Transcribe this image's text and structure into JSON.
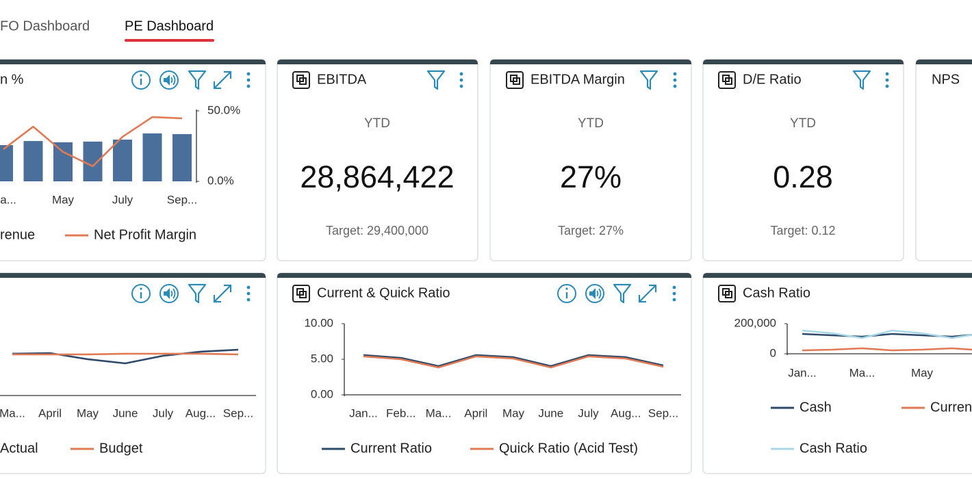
{
  "tabs": [
    "FO Dashboard",
    "PE Dashboard"
  ],
  "cards": [
    {
      "title": "n %",
      "chart_data": {
        "type": "bar_line",
        "categories": [
          "Ma...",
          null,
          "May",
          null,
          "July",
          null,
          "Sep..."
        ],
        "series": [
          {
            "name": "renue",
            "kind": "bar",
            "color": "#4a6f9a",
            "values": [
              25.7,
              28.6,
              27.7,
              28.2,
              29.6,
              34.0,
              33.5
            ]
          },
          {
            "name": "Net Profit Margin",
            "kind": "line",
            "color": "#e07a54",
            "values": [
              22.8,
              38.8,
              20.9,
              10.7,
              31.6,
              45.6,
              44.7
            ]
          }
        ],
        "ylim": [
          0,
          50
        ],
        "yticks": [
          {
            "value": 50,
            "label": "50.0%"
          },
          {
            "value": 0,
            "label": "0.0%"
          }
        ]
      }
    },
    {
      "title": "EBITDA",
      "period": "YTD",
      "value": "28,864,422",
      "target": "Target: 29,400,000"
    },
    {
      "title": "EBITDA Margin",
      "period": "YTD",
      "value": "27%",
      "target": "Target: 27%"
    },
    {
      "title": "D/E Ratio",
      "period": "YTD",
      "value": "0.28",
      "target": "Target: 0.12"
    },
    {
      "title": "NPS"
    },
    {
      "chart_data": {
        "type": "line",
        "categories": [
          "Ma...",
          "April",
          "May",
          "June",
          "July",
          "Aug...",
          "Sep..."
        ],
        "series": [
          {
            "name": "Actual",
            "color": "#2e4a6b",
            "values": [
              56.5,
              57.4,
              49.1,
              43.5,
              53.7,
              59.3,
              62.0
            ]
          },
          {
            "name": "Budget",
            "color": "#e07a54",
            "values": [
              55.6,
              55.6,
              55.6,
              56.5,
              56.5,
              56.5,
              55.6
            ]
          }
        ],
        "ylim": [
          0,
          100
        ]
      }
    },
    {
      "title": "Current & Quick Ratio",
      "chart_data": {
        "type": "line",
        "categories": [
          "Jan...",
          "Feb...",
          "Ma...",
          "April",
          "May",
          "June",
          "July",
          "Aug...",
          "Sep..."
        ],
        "series": [
          {
            "name": "Current Ratio",
            "color": "#2e4a6b",
            "values": [
              5.58,
              5.19,
              4.04,
              5.58,
              5.29,
              4.04,
              5.58,
              5.29,
              4.13
            ]
          },
          {
            "name": "Quick Ratio (Acid Test)",
            "color": "#e07a54",
            "values": [
              5.4,
              5.0,
              3.85,
              5.4,
              5.1,
              3.85,
              5.4,
              5.1,
              3.95
            ]
          }
        ],
        "ylim": [
          0,
          10
        ],
        "yticks": [
          {
            "value": 10,
            "label": "10.00"
          },
          {
            "value": 5,
            "label": "5.00"
          },
          {
            "value": 0,
            "label": "0.00"
          }
        ]
      }
    },
    {
      "title": "Cash Ratio",
      "chart_data": {
        "type": "line",
        "categories": [
          "Jan...",
          null,
          "Ma...",
          null,
          "May",
          null,
          null
        ],
        "series": [
          {
            "name": "Cash",
            "color": "#2e4a6b",
            "values": [
              131818,
              122727,
              113636,
              131818,
              122727,
              113636,
              131818
            ]
          },
          {
            "name": "Curren",
            "color": "#e07a54",
            "values": [
              22727,
              27273,
              36364,
              22727,
              27273,
              36364,
              22727
            ]
          },
          {
            "name": "Cash Ratio",
            "color": "#a8d8e6",
            "values": [
              154545,
              136364,
              104545,
              154545,
              136364,
              104545,
              136364
            ]
          }
        ],
        "ylim": [
          0,
          200000
        ],
        "yticks": [
          {
            "value": 200000,
            "label": "200,000"
          },
          0
        ]
      }
    }
  ]
}
